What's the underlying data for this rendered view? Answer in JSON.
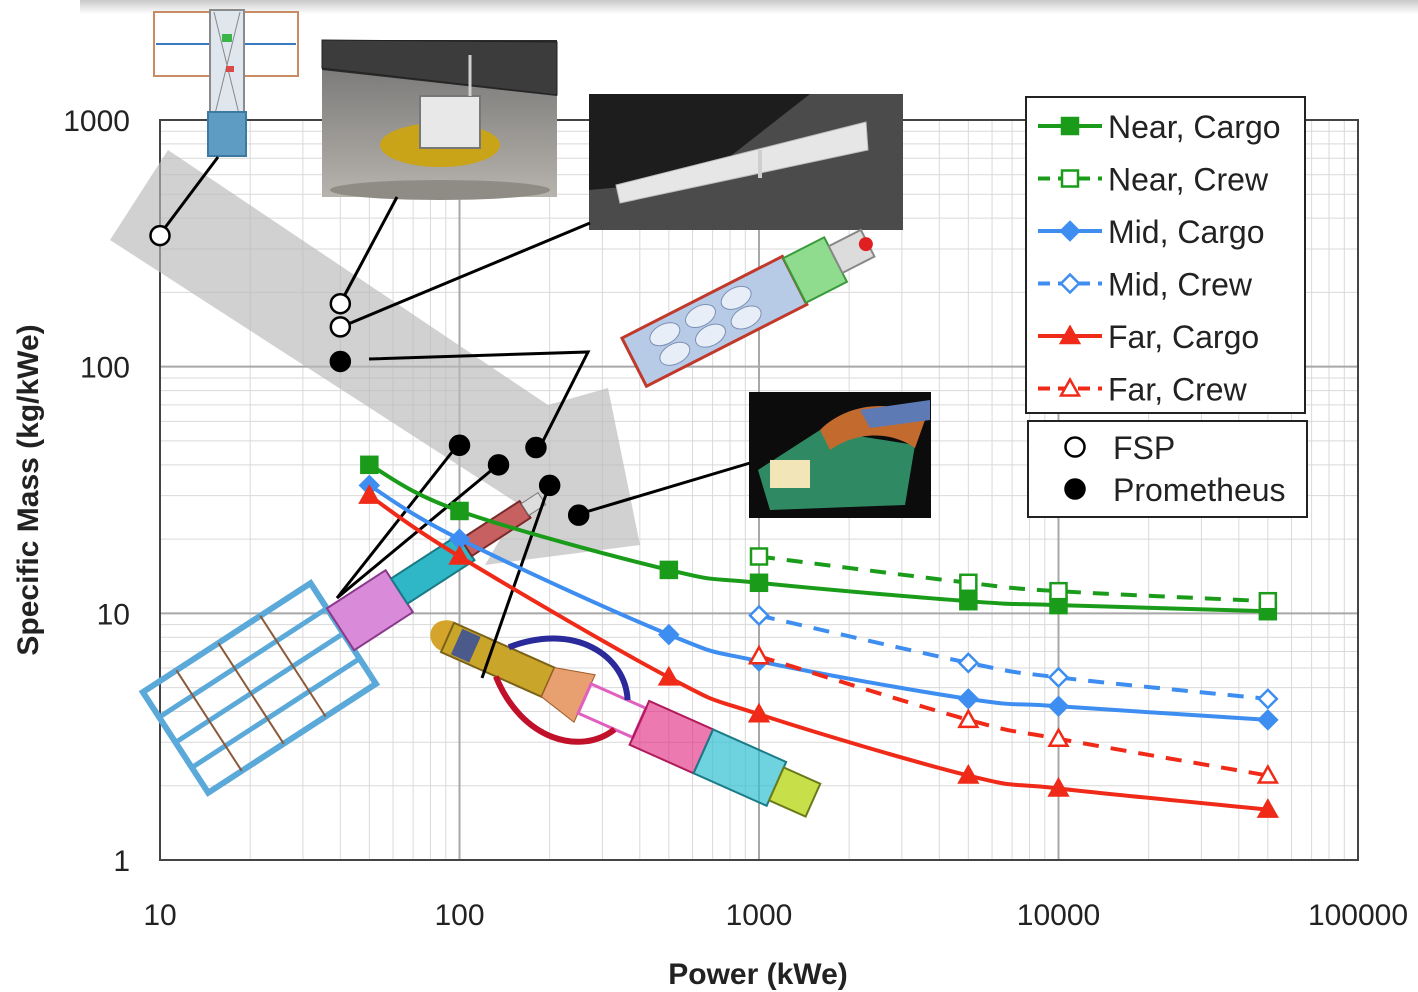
{
  "chart_data": {
    "type": "line",
    "xscale": "log",
    "yscale": "log",
    "xlim": [
      10,
      100000
    ],
    "ylim": [
      1,
      1000
    ],
    "xlabel": "Power (kWe)",
    "ylabel": "Specific Mass (kg/kWe)",
    "x_ticks": [
      "10",
      "100",
      "1000",
      "10000",
      "100000"
    ],
    "y_ticks": [
      "1",
      "10",
      "100",
      "1000"
    ],
    "grid": true,
    "legend_position": "top-right",
    "series": [
      {
        "name": "Near, Cargo",
        "color": "#1a9c1a",
        "dashed": false,
        "marker": "square",
        "filled": true,
        "x": [
          50,
          100,
          500,
          1000,
          5000,
          10000,
          50000
        ],
        "y": [
          40,
          26,
          15,
          13.3,
          11.2,
          10.8,
          10.2
        ]
      },
      {
        "name": "Near, Crew",
        "color": "#1a9c1a",
        "dashed": true,
        "marker": "square",
        "filled": false,
        "x": [
          1000,
          5000,
          10000,
          50000
        ],
        "y": [
          17,
          13.3,
          12.3,
          11.2
        ]
      },
      {
        "name": "Mid, Cargo",
        "color": "#3d8ef0",
        "dashed": false,
        "marker": "diamond",
        "filled": true,
        "x": [
          50,
          100,
          500,
          1000,
          5000,
          10000,
          50000
        ],
        "y": [
          33,
          20,
          8.2,
          6.4,
          4.5,
          4.2,
          3.7
        ]
      },
      {
        "name": "Mid, Crew",
        "color": "#3d8ef0",
        "dashed": true,
        "marker": "diamond",
        "filled": false,
        "x": [
          1000,
          5000,
          10000,
          50000
        ],
        "y": [
          9.8,
          6.3,
          5.5,
          4.5
        ]
      },
      {
        "name": "Far, Cargo",
        "color": "#f02a18",
        "dashed": false,
        "marker": "triangle",
        "filled": true,
        "x": [
          50,
          100,
          500,
          1000,
          5000,
          10000,
          50000
        ],
        "y": [
          30,
          17,
          5.5,
          3.9,
          2.2,
          1.95,
          1.6
        ]
      },
      {
        "name": "Far, Crew",
        "color": "#f02a18",
        "dashed": true,
        "marker": "triangle",
        "filled": false,
        "x": [
          1000,
          5000,
          10000,
          50000
        ],
        "y": [
          6.7,
          3.7,
          3.1,
          2.2
        ]
      }
    ],
    "points": [
      {
        "name": "FSP",
        "filled": false,
        "x": [
          10,
          40,
          40
        ],
        "y": [
          340,
          180,
          145
        ]
      },
      {
        "name": "Prometheus",
        "filled": true,
        "x": [
          40,
          100,
          135,
          180,
          200,
          250
        ],
        "y": [
          105,
          48,
          40,
          47,
          33,
          25
        ]
      }
    ],
    "legend": {
      "lines": [
        "Near, Cargo",
        "Near, Crew",
        "Mid, Cargo",
        "Mid, Crew",
        "Far, Cargo",
        "Far, Crew"
      ],
      "points": [
        "FSP",
        "Prometheus"
      ]
    }
  }
}
